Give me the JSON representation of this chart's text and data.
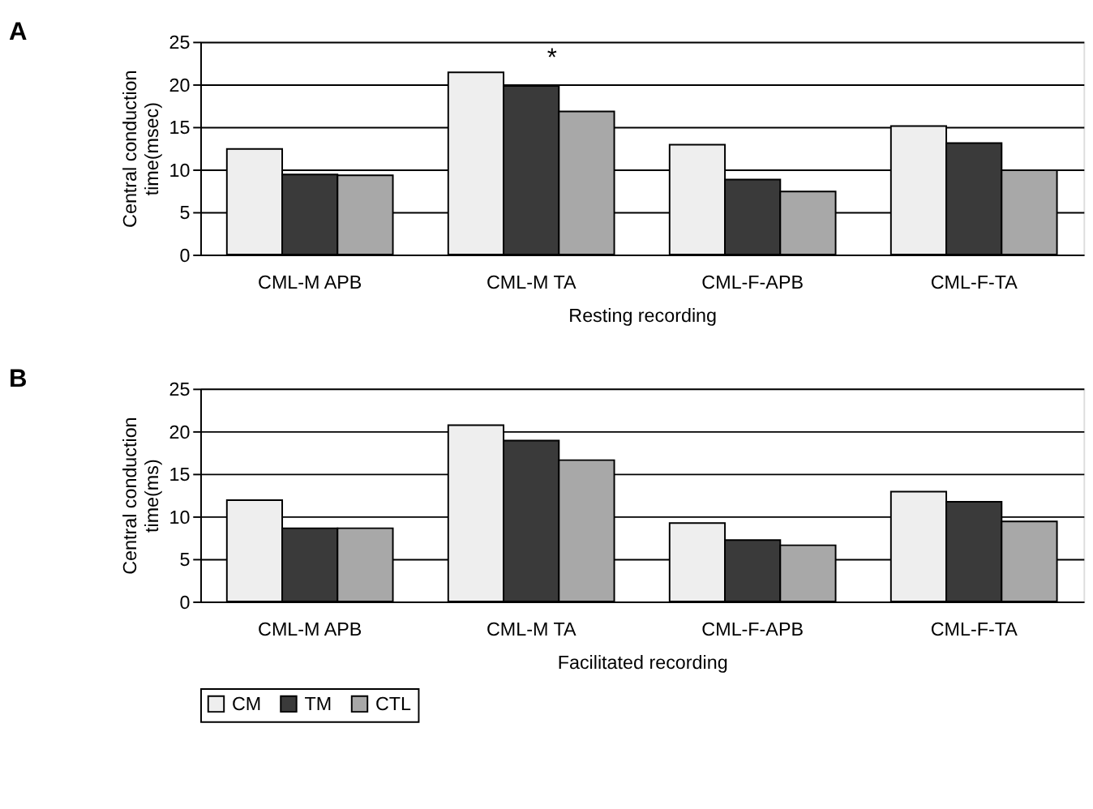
{
  "chart_data": [
    {
      "type": "bar",
      "title": "A",
      "xlabel": "Resting recording",
      "ylabel": "Central conduction time(msec)",
      "categories": [
        "CML-M APB",
        "CML-M TA",
        "CML-F-APB",
        "CML-F-TA"
      ],
      "series": [
        {
          "name": "CM",
          "color": "#eeeeee",
          "values": [
            12.4,
            21.4,
            12.9,
            15.1
          ]
        },
        {
          "name": "TM",
          "color": "#3a3a3a",
          "values": [
            9.4,
            19.8,
            8.8,
            13.1
          ]
        },
        {
          "name": "CTL",
          "color": "#a8a8a8",
          "values": [
            9.3,
            16.8,
            7.4,
            9.9
          ]
        }
      ],
      "ylim": [
        0,
        25
      ],
      "yticks": [
        0,
        5,
        10,
        15,
        20,
        25
      ],
      "grid": "y",
      "legend": "bottom",
      "annotations": [
        "*"
      ]
    },
    {
      "type": "bar",
      "title": "B",
      "xlabel": "Facilitated recording",
      "ylabel": "Central conduction time(ms)",
      "categories": [
        "CML-M APB",
        "CML-M TA",
        "CML-F-APB",
        "CML-F-TA"
      ],
      "series": [
        {
          "name": "CM",
          "color": "#eeeeee",
          "values": [
            11.9,
            20.7,
            9.2,
            12.9
          ]
        },
        {
          "name": "TM",
          "color": "#3a3a3a",
          "values": [
            8.6,
            18.9,
            7.2,
            11.7
          ]
        },
        {
          "name": "CTL",
          "color": "#a8a8a8",
          "values": [
            8.6,
            16.6,
            6.6,
            9.4
          ]
        }
      ],
      "ylim": [
        0,
        25
      ],
      "yticks": [
        0,
        5,
        10,
        15,
        20,
        25
      ],
      "grid": "y",
      "legend": "bottom"
    }
  ]
}
